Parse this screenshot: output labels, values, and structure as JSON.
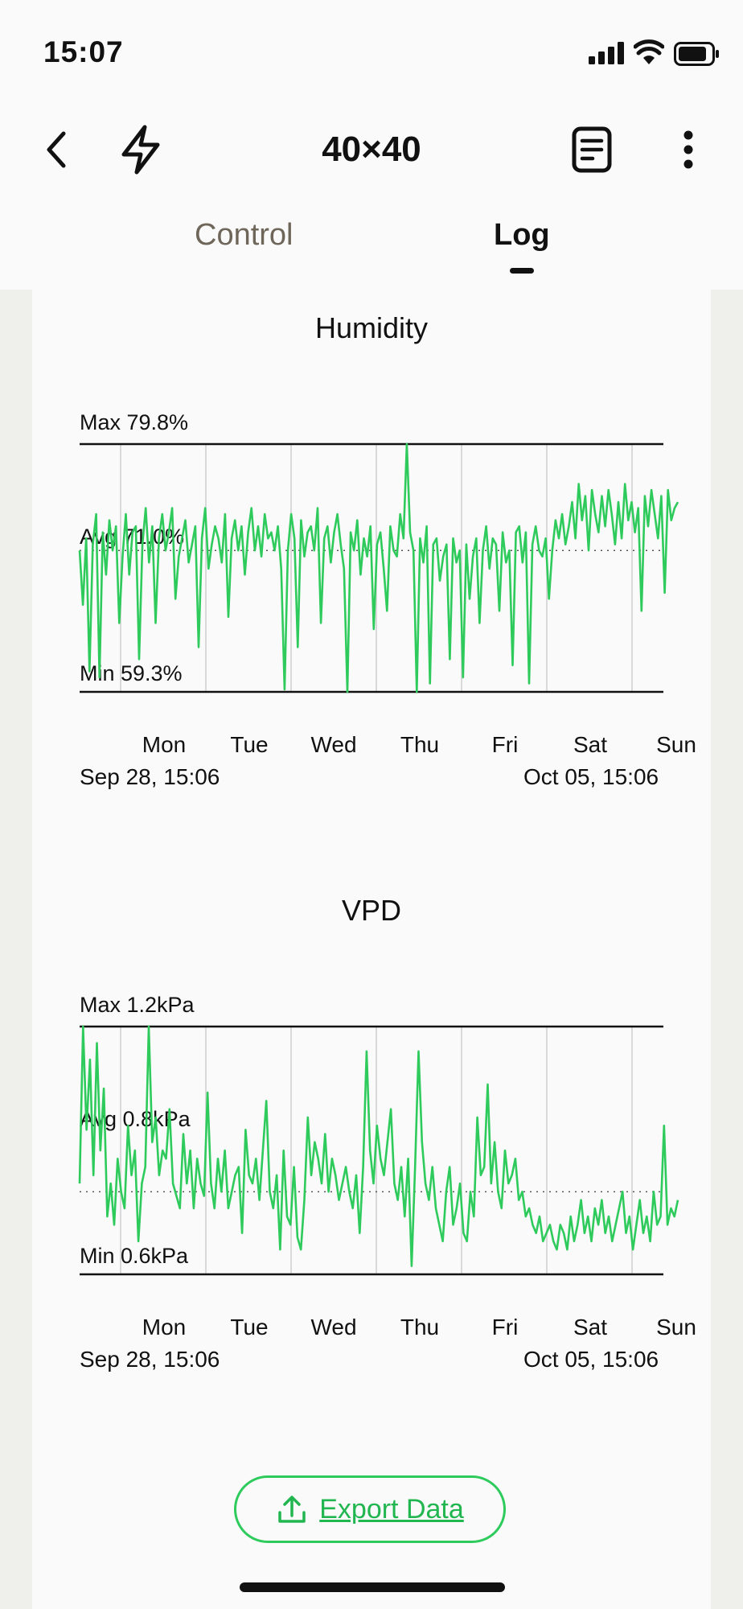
{
  "status_bar": {
    "time": "15:07"
  },
  "header": {
    "title": "40×40"
  },
  "tabs": {
    "control": "Control",
    "log": "Log",
    "active": "Log"
  },
  "charts": {
    "humidity": {
      "title": "Humidity",
      "max": "Max 79.8%",
      "avg": "Avg 71.0%",
      "min": "Min 59.3%",
      "days": [
        "Mon",
        "Tue",
        "Wed",
        "Thu",
        "Fri",
        "Sat",
        "Sun"
      ],
      "range_start": "Sep 28, 15:06",
      "range_end": "Oct 05, 15:06"
    },
    "vpd": {
      "title": "VPD",
      "max": "Max 1.2kPa",
      "avg": "Avg 0.8kPa",
      "min": "Min 0.6kPa",
      "days": [
        "Mon",
        "Tue",
        "Wed",
        "Thu",
        "Fri",
        "Sat",
        "Sun"
      ],
      "range_start": "Sep 28, 15:06",
      "range_end": "Oct 05, 15:06"
    }
  },
  "export": {
    "label": "Export Data"
  },
  "colors": {
    "line": "#2ecb5c",
    "accent": "#21b64f",
    "grid": "#d9d9d9",
    "tab_inactive": "#6f665a"
  },
  "icons": {
    "back": "chevron-left-icon",
    "bolt": "lightning-icon",
    "doc": "document-icon",
    "more": "more-vertical-icon",
    "export": "upload-icon"
  },
  "chart_data": [
    {
      "type": "line",
      "title": "Humidity",
      "ylabel": "",
      "xlabel": "",
      "ylim": [
        59.3,
        79.8
      ],
      "avg": 71.0,
      "x_ticks": [
        "Mon",
        "Tue",
        "Wed",
        "Thu",
        "Fri",
        "Sat",
        "Sun"
      ],
      "x_range": [
        "Sep 28, 15:06",
        "Oct 05, 15:06"
      ],
      "series": [
        {
          "values": [
            71.0,
            66.5,
            72.0,
            61.0,
            71.5,
            74.0,
            60.5,
            72.5,
            69.0,
            73.5,
            71.0,
            73.0,
            65.0,
            70.5,
            74.0,
            69.0,
            72.5,
            73.0,
            62.0,
            71.5,
            74.5,
            70.0,
            73.0,
            65.0,
            72.0,
            74.0,
            71.0,
            72.5,
            74.5,
            67.0,
            70.5,
            72.0,
            73.5,
            70.0,
            71.5,
            73.0,
            63.0,
            72.0,
            74.5,
            69.5,
            71.5,
            73.0,
            72.0,
            70.0,
            74.0,
            65.5,
            72.0,
            73.5,
            71.0,
            73.0,
            69.0,
            72.5,
            74.5,
            71.0,
            73.0,
            70.5,
            74.0,
            72.0,
            72.5,
            71.0,
            73.0,
            69.5,
            59.5,
            71.0,
            74.0,
            72.0,
            63.0,
            73.5,
            70.5,
            72.5,
            73.0,
            71.0,
            74.5,
            65.0,
            72.0,
            73.0,
            70.0,
            72.5,
            74.0,
            71.5,
            69.5,
            59.3,
            72.5,
            71.0,
            73.5,
            69.0,
            72.0,
            70.5,
            73.0,
            64.5,
            71.5,
            72.5,
            69.5,
            66.0,
            73.0,
            71.0,
            70.5,
            74.0,
            72.0,
            79.8,
            72.5,
            71.0,
            59.3,
            72.0,
            70.0,
            73.0,
            60.0,
            71.5,
            72.0,
            68.5,
            70.5,
            71.5,
            62.0,
            72.0,
            70.0,
            71.0,
            60.5,
            71.5,
            67.0,
            70.5,
            72.0,
            65.0,
            71.0,
            73.0,
            69.5,
            72.0,
            71.5,
            66.0,
            72.5,
            70.0,
            71.0,
            61.5,
            72.5,
            73.0,
            70.0,
            72.5,
            60.0,
            71.5,
            73.0,
            71.0,
            70.5,
            72.0,
            67.0,
            71.0,
            73.5,
            72.0,
            74.0,
            71.5,
            73.0,
            75.0,
            72.0,
            76.5,
            73.5,
            75.5,
            71.0,
            76.0,
            74.0,
            72.5,
            75.5,
            73.0,
            76.0,
            74.0,
            71.5,
            75.0,
            72.0,
            76.5,
            73.5,
            75.0,
            72.5,
            74.5,
            66.0,
            75.5,
            73.0,
            76.0,
            74.0,
            72.0,
            75.5,
            67.5,
            76.0,
            73.5,
            74.5,
            75.0
          ]
        }
      ]
    },
    {
      "type": "line",
      "title": "VPD",
      "ylabel": "",
      "xlabel": "",
      "ylim": [
        0.6,
        1.2
      ],
      "avg": 0.8,
      "x_ticks": [
        "Mon",
        "Tue",
        "Wed",
        "Thu",
        "Fri",
        "Sat",
        "Sun"
      ],
      "x_range": [
        "Sep 28, 15:06",
        "Oct 05, 15:06"
      ],
      "series": [
        {
          "values": [
            0.82,
            1.2,
            0.95,
            1.12,
            0.84,
            1.16,
            0.9,
            1.05,
            0.74,
            0.82,
            0.72,
            0.88,
            0.8,
            0.76,
            0.96,
            0.84,
            0.9,
            0.68,
            0.82,
            0.86,
            1.2,
            0.92,
            0.98,
            0.84,
            0.9,
            0.88,
            1.0,
            0.82,
            0.79,
            0.76,
            0.94,
            0.82,
            0.9,
            0.76,
            0.88,
            0.82,
            0.79,
            1.04,
            0.82,
            0.76,
            0.88,
            0.8,
            0.9,
            0.76,
            0.8,
            0.84,
            0.86,
            0.7,
            0.95,
            0.84,
            0.82,
            0.88,
            0.78,
            0.9,
            1.02,
            0.8,
            0.76,
            0.84,
            0.66,
            0.9,
            0.74,
            0.72,
            0.86,
            0.69,
            0.66,
            0.78,
            0.98,
            0.84,
            0.92,
            0.88,
            0.82,
            0.94,
            0.8,
            0.88,
            0.84,
            0.78,
            0.82,
            0.86,
            0.8,
            0.76,
            0.84,
            0.7,
            0.86,
            1.14,
            0.9,
            0.82,
            0.96,
            0.88,
            0.84,
            0.92,
            1.0,
            0.82,
            0.78,
            0.86,
            0.74,
            0.88,
            0.62,
            0.86,
            1.14,
            0.92,
            0.82,
            0.78,
            0.86,
            0.76,
            0.72,
            0.68,
            0.8,
            0.86,
            0.72,
            0.76,
            0.82,
            0.7,
            0.68,
            0.8,
            0.74,
            0.98,
            0.84,
            0.86,
            1.06,
            0.82,
            0.92,
            0.8,
            0.76,
            0.9,
            0.82,
            0.84,
            0.88,
            0.78,
            0.8,
            0.74,
            0.76,
            0.72,
            0.7,
            0.74,
            0.68,
            0.7,
            0.72,
            0.68,
            0.66,
            0.72,
            0.7,
            0.66,
            0.74,
            0.68,
            0.72,
            0.78,
            0.7,
            0.74,
            0.68,
            0.76,
            0.72,
            0.78,
            0.7,
            0.74,
            0.68,
            0.72,
            0.76,
            0.8,
            0.7,
            0.74,
            0.66,
            0.72,
            0.78,
            0.7,
            0.74,
            0.68,
            0.8,
            0.72,
            0.74,
            0.96,
            0.72,
            0.76,
            0.74,
            0.78
          ]
        }
      ]
    }
  ]
}
